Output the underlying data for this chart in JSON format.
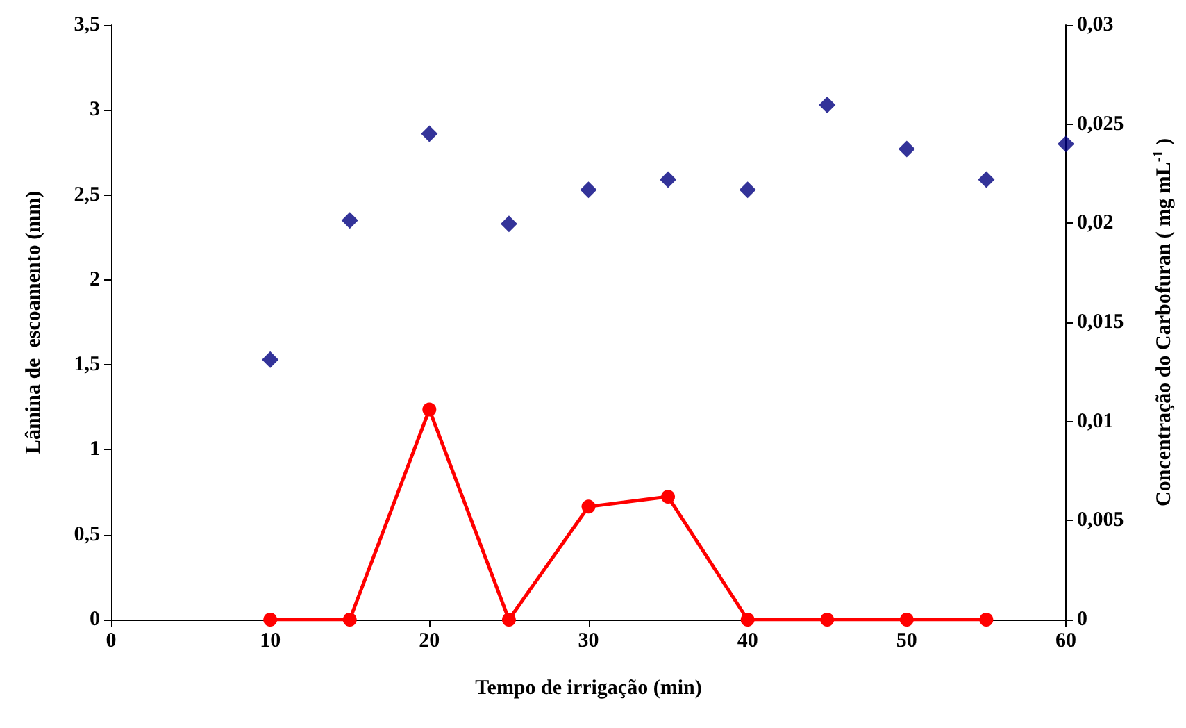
{
  "chart_data": {
    "type": "scatter",
    "xlabel": "Tempo de irrigação (min)",
    "ylabel": "Lâmina de  escoamento (mm)",
    "y2label": "Concentração do Carbofuran ( mg mL$^{-1}$ )",
    "x": [
      10,
      15,
      20,
      25,
      30,
      35,
      40,
      45,
      50,
      55,
      60
    ],
    "series": [
      {
        "marker": "diamond",
        "color": "#000080",
        "values": [
          1.53,
          2.35,
          2.86,
          2.33,
          2.53,
          2.59,
          2.53,
          3.03,
          2.77,
          2.59,
          2.8
        ]
      },
      {
        "type": "line",
        "axis": "y2",
        "marker": "circle",
        "line_style": "solid",
        "color": "#ff0000",
        "x": [
          10,
          15,
          20,
          25,
          30,
          35,
          40,
          45,
          50,
          55
        ],
        "values": [
          0,
          0,
          0.0106,
          0,
          0.0057,
          0.0062,
          0,
          0,
          0,
          0
        ]
      }
    ],
    "xlim": [
      0,
      60
    ],
    "xticks": [
      0,
      10,
      20,
      30,
      40,
      50,
      60
    ],
    "ylim": [
      0,
      3.5
    ],
    "yticks": [
      0,
      {
        "value": 0.5,
        "label": "0,5"
      },
      1,
      {
        "value": 1.5,
        "label": "1,5"
      },
      2,
      {
        "value": 2.5,
        "label": "2,5"
      },
      3,
      {
        "value": 3.5,
        "label": "3,5"
      }
    ],
    "y2lim": [
      0,
      0.03
    ],
    "y2ticks": [
      0,
      {
        "value": 0.005,
        "label": "0,005"
      },
      {
        "value": 0.01,
        "label": "0,01"
      },
      {
        "value": 0.015,
        "label": "0,015"
      },
      {
        "value": 0.02,
        "label": "0,02"
      },
      {
        "value": 0.025,
        "label": "0,025"
      },
      {
        "value": 0.03,
        "label": "0,03"
      }
    ],
    "grid": false
  }
}
